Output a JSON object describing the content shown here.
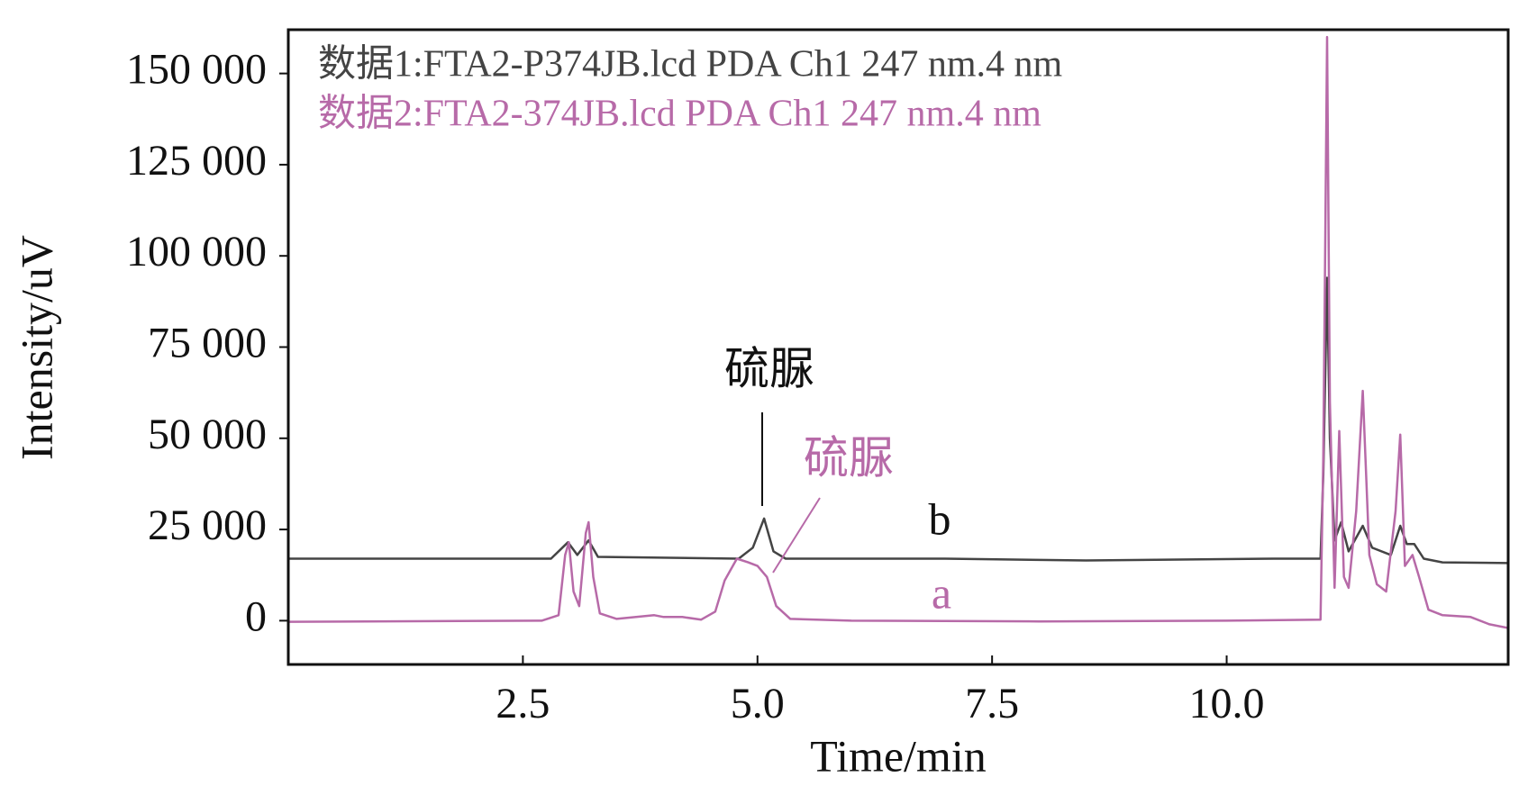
{
  "chart_data": {
    "type": "line",
    "x_label": "Time/min",
    "y_label": "Intensity/uV",
    "xlim": [
      0,
      13
    ],
    "ylim": [
      -12000,
      162000
    ],
    "xticks": [
      {
        "value": 2.5,
        "label": "2.5"
      },
      {
        "value": 5,
        "label": "5.0"
      },
      {
        "value": 7.5,
        "label": "7.5"
      },
      {
        "value": 10,
        "label": "10.0"
      }
    ],
    "yticks": [
      0,
      {
        "value": 25000,
        "label": "25 000"
      },
      {
        "value": 50000,
        "label": "50 000"
      },
      {
        "value": 75000,
        "label": "75 000"
      },
      {
        "value": 100000,
        "label": "100 000"
      },
      {
        "value": 125000,
        "label": "125 000"
      },
      {
        "value": 150000,
        "label": "150 000"
      }
    ],
    "series": [
      {
        "name": "数据1:FTA2-P374JB.lcd PDA Ch1 247 nm.4 nm",
        "color": "#444444",
        "x": [
          0,
          2.8,
          2.98,
          3.08,
          3.2,
          3.3,
          4.8,
          4.95,
          5.07,
          5.17,
          5.3,
          7,
          8.5,
          10.5,
          11.0,
          11.03,
          11.07,
          11.1,
          11.15,
          11.22,
          11.3,
          11.45,
          11.55,
          11.75,
          11.85,
          11.92,
          12.0,
          12.1,
          12.3,
          13
        ],
        "values": [
          17000,
          17000,
          21500,
          18000,
          22000,
          17500,
          17000,
          20000,
          28000,
          19000,
          17000,
          17000,
          16500,
          17000,
          17000,
          40000,
          94000,
          50000,
          22000,
          27000,
          19000,
          26000,
          20000,
          18000,
          26000,
          21000,
          21000,
          17000,
          16000,
          15800
        ]
      },
      {
        "name": "数据2:FTA2-374JB.lcd PDA Ch1 247 nm.4 nm",
        "color": "#b76aa8",
        "x": [
          0,
          2.7,
          2.88,
          2.95,
          2.99,
          3.04,
          3.1,
          3.17,
          3.2,
          3.25,
          3.32,
          3.5,
          3.9,
          4.0,
          4.2,
          4.4,
          4.55,
          4.65,
          4.78,
          4.9,
          5.0,
          5.1,
          5.2,
          5.35,
          6,
          8,
          10,
          11.0,
          11.03,
          11.07,
          11.1,
          11.15,
          11.2,
          11.25,
          11.3,
          11.38,
          11.45,
          11.52,
          11.6,
          11.7,
          11.8,
          11.85,
          11.9,
          11.98,
          12.05,
          12.15,
          12.3,
          12.6,
          12.8,
          13
        ],
        "values": [
          -300,
          0,
          1500,
          18000,
          21500,
          8000,
          4000,
          24000,
          27000,
          12000,
          2000,
          500,
          1500,
          1000,
          1000,
          300,
          2500,
          11000,
          17000,
          16000,
          15000,
          12000,
          4000,
          500,
          0,
          -200,
          0,
          300,
          45000,
          160000,
          60000,
          9000,
          52000,
          12000,
          9000,
          30000,
          63000,
          18000,
          10000,
          8000,
          30000,
          51000,
          15000,
          18000,
          12000,
          3000,
          1500,
          1000,
          -1000,
          -2000
        ]
      }
    ],
    "annotations": [
      {
        "text": "硫脲",
        "color": "#111111"
      },
      {
        "text": "硫脲",
        "color": "#b76aa8"
      },
      {
        "text": "b",
        "color": "#111111"
      },
      {
        "text": "a",
        "color": "#b76aa8"
      }
    ]
  }
}
